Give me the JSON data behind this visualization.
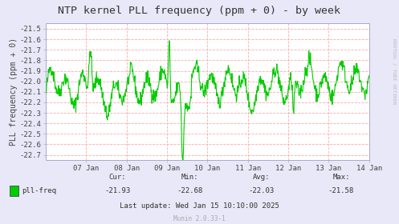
{
  "title": "NTP kernel PLL frequency (ppm + 0) - by week",
  "ylabel": "PLL frequency (ppm + 0)",
  "bg_color": "#e8e8f8",
  "plot_bg_color": "#ffffff",
  "grid_color": "#ffaaaa",
  "line_color": "#00cc00",
  "line_width": 0.8,
  "ylim": [
    -22.75,
    -21.45
  ],
  "yticks": [
    -22.7,
    -22.6,
    -22.5,
    -22.4,
    -22.3,
    -22.2,
    -22.1,
    -22.0,
    -21.9,
    -21.8,
    -21.7,
    -21.6,
    -21.5
  ],
  "xtick_labels": [
    "07 Jan",
    "08 Jan",
    "09 Jan",
    "10 Jan",
    "11 Jan",
    "12 Jan",
    "13 Jan",
    "14 Jan"
  ],
  "legend_label": "pll-freq",
  "legend_color": "#00cc00",
  "stats_cur": "-21.93",
  "stats_min": "-22.68",
  "stats_avg": "-22.03",
  "stats_max": "-21.58",
  "last_update": "Last update: Wed Jan 15 10:10:00 2025",
  "munin_version": "Munin 2.0.33-1",
  "watermark": "RRDTOOL / TOBI OETIKER",
  "title_fontsize": 9.5,
  "label_fontsize": 7,
  "tick_fontsize": 6.5
}
